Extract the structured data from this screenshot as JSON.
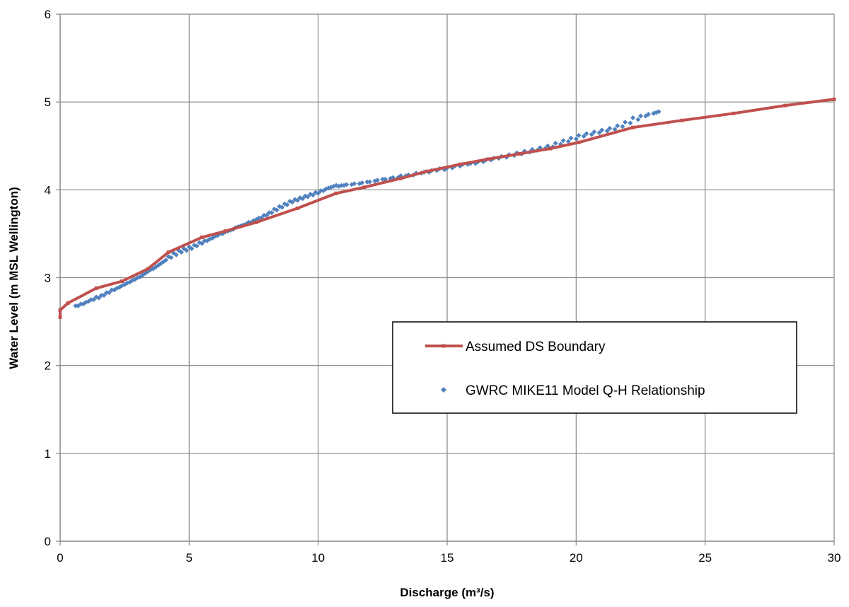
{
  "chart_data": {
    "type": "scatter",
    "title": "",
    "xlabel": "Discharge (m³/s)",
    "ylabel": "Water Level (m MSL Wellington)",
    "xlim": [
      0,
      30
    ],
    "ylim": [
      0,
      6
    ],
    "xticks": [
      "0",
      "5",
      "10",
      "15",
      "20",
      "25",
      "30"
    ],
    "yticks": [
      "0",
      "1",
      "2",
      "3",
      "4",
      "5",
      "6"
    ],
    "grid": true,
    "legend_position": "center-right",
    "series": [
      {
        "name": "Assumed DS Boundary",
        "type": "line",
        "color": "#c0504d",
        "points": [
          [
            0.0,
            2.55
          ],
          [
            0.0,
            2.63
          ],
          [
            0.3,
            2.71
          ],
          [
            1.4,
            2.88
          ],
          [
            2.4,
            2.96
          ],
          [
            3.4,
            3.1
          ],
          [
            4.2,
            3.29
          ],
          [
            5.5,
            3.46
          ],
          [
            6.4,
            3.53
          ],
          [
            7.6,
            3.63
          ],
          [
            9.2,
            3.79
          ],
          [
            10.7,
            3.96
          ],
          [
            11.8,
            4.03
          ],
          [
            13.2,
            4.13
          ],
          [
            14.2,
            4.21
          ],
          [
            15.5,
            4.29
          ],
          [
            16.6,
            4.35
          ],
          [
            17.8,
            4.41
          ],
          [
            19.0,
            4.47
          ],
          [
            20.1,
            4.54
          ],
          [
            22.2,
            4.71
          ],
          [
            24.1,
            4.79
          ],
          [
            26.1,
            4.87
          ],
          [
            28.1,
            4.96
          ],
          [
            30.0,
            5.03
          ]
        ]
      },
      {
        "name": "GWRC MIKE11 Model Q-H Relationship",
        "type": "scatter",
        "color": "#4f81bd",
        "points": [
          [
            0.6,
            2.68
          ],
          [
            0.8,
            2.7
          ],
          [
            1.0,
            2.72
          ],
          [
            1.2,
            2.75
          ],
          [
            1.4,
            2.78
          ],
          [
            1.6,
            2.8
          ],
          [
            1.8,
            2.83
          ],
          [
            2.0,
            2.86
          ],
          [
            2.2,
            2.88
          ],
          [
            2.4,
            2.91
          ],
          [
            2.6,
            2.94
          ],
          [
            2.8,
            2.97
          ],
          [
            3.0,
            3.0
          ],
          [
            3.2,
            3.03
          ],
          [
            3.4,
            3.07
          ],
          [
            3.6,
            3.1
          ],
          [
            3.8,
            3.14
          ],
          [
            4.0,
            3.18
          ],
          [
            4.2,
            3.24
          ],
          [
            4.4,
            3.28
          ],
          [
            4.6,
            3.31
          ],
          [
            4.8,
            3.33
          ],
          [
            5.0,
            3.35
          ],
          [
            5.2,
            3.37
          ],
          [
            5.4,
            3.4
          ],
          [
            5.6,
            3.42
          ],
          [
            5.8,
            3.44
          ],
          [
            6.0,
            3.47
          ],
          [
            6.2,
            3.5
          ],
          [
            6.4,
            3.52
          ],
          [
            6.6,
            3.54
          ],
          [
            6.8,
            3.57
          ],
          [
            7.0,
            3.59
          ],
          [
            7.2,
            3.61
          ],
          [
            7.4,
            3.63
          ],
          [
            7.6,
            3.66
          ],
          [
            7.8,
            3.68
          ],
          [
            8.0,
            3.71
          ],
          [
            8.2,
            3.74
          ],
          [
            8.4,
            3.77
          ],
          [
            8.6,
            3.8
          ],
          [
            8.8,
            3.83
          ],
          [
            9.0,
            3.86
          ],
          [
            9.2,
            3.88
          ],
          [
            9.4,
            3.9
          ],
          [
            9.6,
            3.92
          ],
          [
            9.8,
            3.94
          ],
          [
            10.0,
            3.96
          ],
          [
            10.2,
            3.99
          ],
          [
            10.4,
            4.02
          ],
          [
            10.6,
            4.04
          ],
          [
            10.8,
            4.04
          ],
          [
            11.0,
            4.05
          ],
          [
            11.3,
            4.06
          ],
          [
            11.6,
            4.07
          ],
          [
            11.9,
            4.09
          ],
          [
            12.2,
            4.1
          ],
          [
            12.5,
            4.12
          ],
          [
            12.8,
            4.13
          ],
          [
            13.1,
            4.14
          ],
          [
            13.4,
            4.16
          ],
          [
            13.7,
            4.17
          ],
          [
            14.0,
            4.19
          ],
          [
            14.3,
            4.2
          ],
          [
            14.6,
            4.22
          ],
          [
            14.9,
            4.23
          ],
          [
            15.2,
            4.25
          ],
          [
            15.5,
            4.27
          ],
          [
            15.8,
            4.29
          ],
          [
            16.1,
            4.3
          ],
          [
            16.4,
            4.32
          ],
          [
            16.7,
            4.34
          ],
          [
            17.0,
            4.36
          ],
          [
            17.3,
            4.37
          ],
          [
            17.6,
            4.39
          ],
          [
            17.9,
            4.41
          ],
          [
            18.2,
            4.43
          ],
          [
            18.5,
            4.45
          ],
          [
            18.8,
            4.47
          ],
          [
            19.1,
            4.49
          ],
          [
            19.4,
            4.52
          ],
          [
            19.7,
            4.55
          ],
          [
            20.0,
            4.58
          ],
          [
            20.3,
            4.61
          ],
          [
            20.6,
            4.63
          ],
          [
            20.9,
            4.65
          ],
          [
            21.2,
            4.67
          ],
          [
            21.5,
            4.69
          ],
          [
            21.8,
            4.72
          ],
          [
            22.1,
            4.76
          ],
          [
            22.4,
            4.8
          ],
          [
            22.7,
            4.84
          ],
          [
            23.0,
            4.87
          ],
          [
            23.2,
            4.89
          ],
          [
            23.1,
            4.88
          ],
          [
            22.8,
            4.86
          ],
          [
            22.5,
            4.84
          ],
          [
            22.2,
            4.82
          ],
          [
            21.9,
            4.77
          ],
          [
            21.6,
            4.73
          ],
          [
            21.3,
            4.7
          ],
          [
            21.0,
            4.68
          ],
          [
            20.7,
            4.66
          ],
          [
            20.4,
            4.64
          ],
          [
            20.1,
            4.62
          ],
          [
            19.8,
            4.59
          ],
          [
            19.5,
            4.56
          ],
          [
            19.2,
            4.53
          ],
          [
            18.9,
            4.5
          ],
          [
            18.6,
            4.48
          ],
          [
            18.3,
            4.46
          ],
          [
            18.0,
            4.44
          ],
          [
            17.7,
            4.42
          ],
          [
            17.4,
            4.4
          ],
          [
            17.1,
            4.38
          ],
          [
            16.8,
            4.36
          ],
          [
            16.5,
            4.34
          ],
          [
            16.2,
            4.32
          ],
          [
            15.9,
            4.3
          ],
          [
            15.6,
            4.29
          ],
          [
            15.3,
            4.27
          ],
          [
            15.0,
            4.25
          ],
          [
            14.7,
            4.24
          ],
          [
            14.4,
            4.22
          ],
          [
            14.1,
            4.2
          ],
          [
            13.8,
            4.19
          ],
          [
            13.5,
            4.17
          ],
          [
            13.2,
            4.16
          ],
          [
            12.9,
            4.14
          ],
          [
            12.6,
            4.12
          ],
          [
            12.3,
            4.11
          ],
          [
            12.0,
            4.09
          ],
          [
            11.7,
            4.08
          ],
          [
            11.4,
            4.07
          ],
          [
            11.1,
            4.06
          ],
          [
            10.9,
            4.05
          ],
          [
            10.7,
            4.05
          ],
          [
            10.5,
            4.03
          ],
          [
            10.3,
            4.01
          ],
          [
            10.1,
            3.99
          ],
          [
            9.9,
            3.97
          ],
          [
            9.7,
            3.95
          ],
          [
            9.5,
            3.93
          ],
          [
            9.3,
            3.91
          ],
          [
            9.1,
            3.89
          ],
          [
            8.9,
            3.87
          ],
          [
            8.7,
            3.84
          ],
          [
            8.5,
            3.81
          ],
          [
            8.3,
            3.78
          ],
          [
            8.1,
            3.74
          ],
          [
            7.9,
            3.71
          ],
          [
            7.7,
            3.68
          ],
          [
            7.5,
            3.65
          ],
          [
            7.3,
            3.63
          ],
          [
            7.1,
            3.6
          ],
          [
            6.9,
            3.58
          ],
          [
            6.7,
            3.55
          ],
          [
            6.5,
            3.53
          ],
          [
            6.3,
            3.5
          ],
          [
            6.1,
            3.48
          ],
          [
            5.9,
            3.45
          ],
          [
            5.7,
            3.42
          ],
          [
            5.5,
            3.39
          ],
          [
            5.3,
            3.36
          ],
          [
            5.1,
            3.33
          ],
          [
            4.9,
            3.31
          ],
          [
            4.7,
            3.29
          ],
          [
            4.5,
            3.26
          ],
          [
            4.3,
            3.23
          ],
          [
            4.1,
            3.2
          ],
          [
            3.9,
            3.16
          ],
          [
            3.7,
            3.12
          ],
          [
            3.5,
            3.09
          ],
          [
            3.3,
            3.05
          ],
          [
            3.1,
            3.01
          ],
          [
            2.9,
            2.98
          ],
          [
            2.7,
            2.95
          ],
          [
            2.5,
            2.92
          ],
          [
            2.3,
            2.89
          ],
          [
            2.1,
            2.86
          ],
          [
            1.9,
            2.83
          ],
          [
            1.7,
            2.8
          ],
          [
            1.5,
            2.77
          ],
          [
            1.3,
            2.75
          ],
          [
            1.1,
            2.73
          ],
          [
            0.9,
            2.7
          ],
          [
            0.7,
            2.68
          ]
        ]
      }
    ]
  }
}
